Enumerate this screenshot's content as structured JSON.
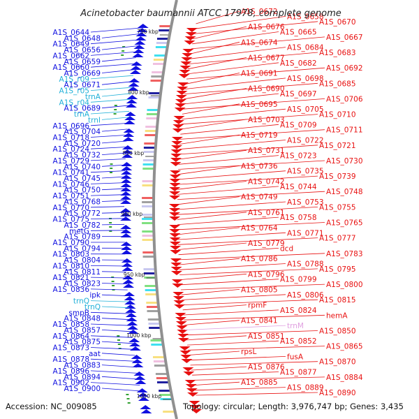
{
  "title": "Acinetobacter baumannii ATCC 17978, complete genome",
  "accession": "Accession: NC_009085",
  "topology": "Topology: circular; Length: 3,976,747 bp; Genes: 3,435",
  "ticks": [
    "750 kbp",
    "800 kbp",
    "850 kbp",
    "900 kbp",
    "950 kbp",
    "1000 kbp",
    "1050 kbp"
  ],
  "colors": {
    "plus": "#1010e0",
    "minus": "#e81010",
    "rna": "#20b0d8",
    "pseudo": "#e0a0e0",
    "backbone": "#909090"
  },
  "left_labels": [
    {
      "text": "A1S_0644",
      "type": "plus"
    },
    {
      "text": "A1S_0648",
      "type": "plus"
    },
    {
      "text": "A1S_0649",
      "type": "plus"
    },
    {
      "text": "A1S_0656",
      "type": "plus"
    },
    {
      "text": "A1S_0662",
      "type": "plus"
    },
    {
      "text": "A1S_0659",
      "type": "plus"
    },
    {
      "text": "A1S_0660",
      "type": "plus"
    },
    {
      "text": "A1S_0669",
      "type": "plus"
    },
    {
      "text": "A1S_r09",
      "type": "rna"
    },
    {
      "text": "A1S_0671",
      "type": "plus"
    },
    {
      "text": "A1S_r05",
      "type": "rna"
    },
    {
      "text": "trnA",
      "type": "rna"
    },
    {
      "text": "A1S_r04",
      "type": "rna"
    },
    {
      "text": "A1S_0689",
      "type": "plus"
    },
    {
      "text": "trnA",
      "type": "rna"
    },
    {
      "text": "trnI",
      "type": "rna"
    },
    {
      "text": "A1S_0696",
      "type": "plus"
    },
    {
      "text": "A1S_0704",
      "type": "plus"
    },
    {
      "text": "A1S_0718",
      "type": "plus"
    },
    {
      "text": "A1S_0720",
      "type": "plus"
    },
    {
      "text": "A1S_0724",
      "type": "plus"
    },
    {
      "text": "A1S_0732",
      "type": "plus"
    },
    {
      "text": "A1S_0729",
      "type": "plus"
    },
    {
      "text": "A1S_0740",
      "type": "plus"
    },
    {
      "text": "A1S_0741",
      "type": "plus"
    },
    {
      "text": "A1S_0745",
      "type": "plus"
    },
    {
      "text": "A1S_0746",
      "type": "plus"
    },
    {
      "text": "A1S_0750",
      "type": "plus"
    },
    {
      "text": "A1S_0751",
      "type": "plus"
    },
    {
      "text": "A1S_0768",
      "type": "plus"
    },
    {
      "text": "A1S_0770",
      "type": "plus"
    },
    {
      "text": "A1S_0772",
      "type": "plus"
    },
    {
      "text": "A1S_0775",
      "type": "plus"
    },
    {
      "text": "A1S_0782",
      "type": "plus"
    },
    {
      "text": "metG",
      "type": "plus"
    },
    {
      "text": "A1S_0789",
      "type": "plus"
    },
    {
      "text": "A1S_0790",
      "type": "plus"
    },
    {
      "text": "A1S_0794",
      "type": "plus"
    },
    {
      "text": "A1S_0803",
      "type": "plus"
    },
    {
      "text": "A1S_0804",
      "type": "plus"
    },
    {
      "text": "A1S_0810",
      "type": "plus"
    },
    {
      "text": "A1S_0811",
      "type": "plus"
    },
    {
      "text": "A1S_0821",
      "type": "plus"
    },
    {
      "text": "A1S_0823",
      "type": "plus"
    },
    {
      "text": "A1S_0836",
      "type": "plus"
    },
    {
      "text": "ipk",
      "type": "plus"
    },
    {
      "text": "trnQ",
      "type": "rna"
    },
    {
      "text": "trnQ",
      "type": "rna"
    },
    {
      "text": "smpB",
      "type": "plus"
    },
    {
      "text": "A1S_0848",
      "type": "plus"
    },
    {
      "text": "A1S_0858",
      "type": "plus"
    },
    {
      "text": "A1S_0857",
      "type": "plus"
    },
    {
      "text": "A1S_0864",
      "type": "plus"
    },
    {
      "text": "A1S_0875",
      "type": "plus"
    },
    {
      "text": "A1S_0873",
      "type": "plus"
    },
    {
      "text": "aat",
      "type": "plus"
    },
    {
      "text": "A1S_0878",
      "type": "plus"
    },
    {
      "text": "A1S_0883",
      "type": "plus"
    },
    {
      "text": "A1S_0896",
      "type": "plus"
    },
    {
      "text": "A1S_0894",
      "type": "plus"
    },
    {
      "text": "A1S_0902",
      "type": "plus"
    },
    {
      "text": "A1S_0900",
      "type": "plus"
    }
  ],
  "right_labels": [
    {
      "text": "A1S_0672",
      "type": "minus"
    },
    {
      "text": "A1S_0658",
      "type": "minus"
    },
    {
      "text": "A1S_0670",
      "type": "minus"
    },
    {
      "text": "A1S_0676",
      "type": "minus"
    },
    {
      "text": "A1S_0665",
      "type": "minus"
    },
    {
      "text": "A1S_0667",
      "type": "minus"
    },
    {
      "text": "A1S_0674",
      "type": "minus"
    },
    {
      "text": "A1S_0684",
      "type": "minus"
    },
    {
      "text": "A1S_0683",
      "type": "minus"
    },
    {
      "text": "A1S_0677",
      "type": "minus"
    },
    {
      "text": "A1S_0682",
      "type": "minus"
    },
    {
      "text": "A1S_0692",
      "type": "minus"
    },
    {
      "text": "A1S_0691",
      "type": "minus"
    },
    {
      "text": "A1S_0698",
      "type": "minus"
    },
    {
      "text": "A1S_0685",
      "type": "minus"
    },
    {
      "text": "A1S_0690",
      "type": "minus"
    },
    {
      "text": "A1S_0697",
      "type": "minus"
    },
    {
      "text": "A1S_0706",
      "type": "minus"
    },
    {
      "text": "A1S_0695",
      "type": "minus"
    },
    {
      "text": "A1S_0705",
      "type": "minus"
    },
    {
      "text": "A1S_0710",
      "type": "minus"
    },
    {
      "text": "A1S_0703",
      "type": "minus"
    },
    {
      "text": "A1S_0709",
      "type": "minus"
    },
    {
      "text": "A1S_0711",
      "type": "minus"
    },
    {
      "text": "A1S_0719",
      "type": "minus"
    },
    {
      "text": "A1S_0722",
      "type": "minus"
    },
    {
      "text": "A1S_0721",
      "type": "minus"
    },
    {
      "text": "A1S_0731",
      "type": "minus"
    },
    {
      "text": "A1S_0723",
      "type": "minus"
    },
    {
      "text": "A1S_0730",
      "type": "minus"
    },
    {
      "text": "A1S_0736",
      "type": "minus"
    },
    {
      "text": "A1S_0735",
      "type": "minus"
    },
    {
      "text": "A1S_0739",
      "type": "minus"
    },
    {
      "text": "A1S_0742",
      "type": "minus"
    },
    {
      "text": "A1S_0744",
      "type": "minus"
    },
    {
      "text": "A1S_0748",
      "type": "minus"
    },
    {
      "text": "A1S_0749",
      "type": "minus"
    },
    {
      "text": "A1S_0753",
      "type": "minus"
    },
    {
      "text": "A1S_0755",
      "type": "minus"
    },
    {
      "text": "A1S_0761",
      "type": "minus"
    },
    {
      "text": "A1S_0758",
      "type": "minus"
    },
    {
      "text": "A1S_0765",
      "type": "minus"
    },
    {
      "text": "A1S_0764",
      "type": "minus"
    },
    {
      "text": "A1S_0771",
      "type": "minus"
    },
    {
      "text": "A1S_0777",
      "type": "minus"
    },
    {
      "text": "A1S_0779",
      "type": "minus"
    },
    {
      "text": "dcd",
      "type": "minus"
    },
    {
      "text": "A1S_0783",
      "type": "minus"
    },
    {
      "text": "A1S_0786",
      "type": "minus"
    },
    {
      "text": "A1S_0788",
      "type": "minus"
    },
    {
      "text": "A1S_0795",
      "type": "minus"
    },
    {
      "text": "A1S_0796",
      "type": "minus"
    },
    {
      "text": "A1S_0799",
      "type": "minus"
    },
    {
      "text": "A1S_0800",
      "type": "minus"
    },
    {
      "text": "A1S_0805",
      "type": "minus"
    },
    {
      "text": "A1S_0806",
      "type": "minus"
    },
    {
      "text": "A1S_0815",
      "type": "minus"
    },
    {
      "text": "rpmF",
      "type": "minus"
    },
    {
      "text": "A1S_0824",
      "type": "minus"
    },
    {
      "text": "hemA",
      "type": "minus"
    },
    {
      "text": "A1S_0841",
      "type": "minus"
    },
    {
      "text": "trnM",
      "type": "pseudo"
    },
    {
      "text": "A1S_0850",
      "type": "minus"
    },
    {
      "text": "A1S_0851",
      "type": "minus"
    },
    {
      "text": "A1S_0852",
      "type": "minus"
    },
    {
      "text": "A1S_0865",
      "type": "minus"
    },
    {
      "text": "rpsL",
      "type": "minus"
    },
    {
      "text": "fusA",
      "type": "minus"
    },
    {
      "text": "A1S_0870",
      "type": "minus"
    },
    {
      "text": "A1S_0876",
      "type": "minus"
    },
    {
      "text": "A1S_0877",
      "type": "minus"
    },
    {
      "text": "A1S_0884",
      "type": "minus"
    },
    {
      "text": "A1S_0885",
      "type": "minus"
    },
    {
      "text": "A1S_0889",
      "type": "minus"
    },
    {
      "text": "A1S_0890",
      "type": "minus"
    }
  ]
}
